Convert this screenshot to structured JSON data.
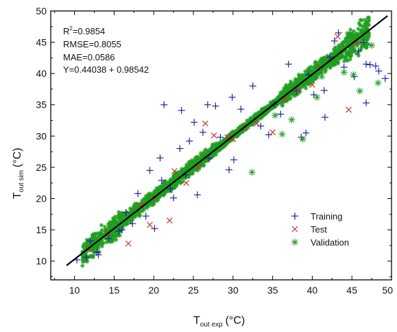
{
  "chart_data": {
    "type": "scatter",
    "title": "",
    "xlabel": {
      "main": "T",
      "sub": "out exp",
      "unit": "(°C)"
    },
    "ylabel": {
      "main": "T",
      "sub": "out sim",
      "unit": "(°C)"
    },
    "xlim": [
      7,
      50
    ],
    "ylim": [
      7,
      50
    ],
    "xticks": [
      10,
      15,
      20,
      25,
      30,
      35,
      40,
      45,
      50
    ],
    "yticks": [
      10,
      15,
      20,
      25,
      30,
      35,
      40,
      45,
      50
    ],
    "grid": false,
    "legend_position": "bottom-right",
    "stats": {
      "r2_label": "R",
      "r2_sup": "2",
      "r2_value": "=0.9854",
      "rmse": "RMSE=0.8055",
      "mae": "MAE=0.0586",
      "equation": "Y=0.44038 + 0.98542"
    },
    "fit_line": {
      "intercept": 0.44038,
      "slope": 0.98542,
      "x_range": [
        9,
        49.5
      ]
    },
    "series": [
      {
        "name": "Training",
        "marker": "plus",
        "color": "#2020a0",
        "points": [
          [
            43.3,
            46.5
          ],
          [
            42.8,
            45.2
          ],
          [
            46.8,
            41.5
          ],
          [
            47.3,
            41.4
          ],
          [
            48.0,
            41.2
          ],
          [
            48.4,
            40.4
          ],
          [
            49.2,
            39.2
          ],
          [
            45.3,
            39.5
          ],
          [
            46.8,
            35.3
          ],
          [
            41.6,
            33.0
          ],
          [
            39.2,
            30.5
          ],
          [
            38.6,
            29.8
          ],
          [
            21.3,
            35.0
          ],
          [
            23.5,
            34.1
          ],
          [
            26.8,
            35.0
          ],
          [
            29.9,
            36.2
          ],
          [
            32.5,
            38.0
          ],
          [
            37.0,
            41.5
          ],
          [
            19.5,
            24.5
          ],
          [
            20.8,
            26.5
          ],
          [
            16.5,
            17.8
          ],
          [
            20.1,
            15.2
          ],
          [
            12.0,
            13.2
          ],
          [
            14.3,
            13.6
          ],
          [
            13.0,
            11.0
          ],
          [
            22.1,
            21.6
          ],
          [
            25.5,
            20.6
          ],
          [
            29.5,
            24.6
          ],
          [
            30.1,
            26.2
          ],
          [
            34.5,
            30.2
          ],
          [
            26.2,
            30.6
          ],
          [
            24.5,
            29.2
          ],
          [
            23.3,
            28.0
          ],
          [
            25.1,
            32.2
          ],
          [
            27.8,
            34.8
          ],
          [
            31.0,
            34.3
          ],
          [
            36.0,
            33.5
          ],
          [
            40.2,
            36.6
          ],
          [
            41.5,
            37.3
          ],
          [
            44.0,
            41.0
          ],
          [
            45.8,
            43.6
          ],
          [
            46.5,
            45.0
          ],
          [
            38.0,
            37.2
          ],
          [
            33.5,
            31.6
          ],
          [
            17.3,
            16.0
          ],
          [
            15.6,
            14.8
          ],
          [
            18.0,
            20.8
          ],
          [
            21.0,
            22.9
          ],
          [
            10.3,
            10.2
          ],
          [
            11.5,
            10.6
          ],
          [
            19.0,
            17.2
          ],
          [
            22.5,
            20.1
          ],
          [
            24.0,
            23.8
          ],
          [
            27.0,
            26.4
          ],
          [
            28.4,
            29.8
          ],
          [
            35.2,
            35.1
          ],
          [
            39.5,
            39.8
          ],
          [
            42.2,
            42.6
          ],
          [
            12.8,
            11.4
          ],
          [
            16.0,
            15.0
          ]
        ]
      },
      {
        "name": "Test",
        "marker": "cross",
        "color": "#cc3030",
        "points": [
          [
            44.6,
            34.2
          ],
          [
            43.2,
            45.9
          ],
          [
            22.0,
            16.5
          ],
          [
            19.5,
            15.8
          ],
          [
            16.8,
            12.8
          ],
          [
            20.2,
            20.2
          ],
          [
            22.6,
            24.4
          ],
          [
            27.6,
            30.1
          ],
          [
            30.0,
            29.5
          ],
          [
            33.0,
            32.0
          ],
          [
            35.0,
            30.6
          ],
          [
            38.2,
            37.4
          ],
          [
            41.0,
            40.9
          ],
          [
            36.5,
            35.9
          ],
          [
            29.3,
            29.8
          ],
          [
            25.6,
            25.0
          ],
          [
            18.4,
            18.9
          ],
          [
            14.2,
            14.5
          ],
          [
            11.8,
            12.0
          ],
          [
            31.5,
            31.4
          ],
          [
            26.5,
            32.0
          ],
          [
            24.1,
            22.5
          ],
          [
            40.0,
            38.2
          ],
          [
            45.5,
            44.8
          ]
        ]
      },
      {
        "name": "Validation",
        "marker": "asterisk",
        "color": "#30a030",
        "points": [
          [
            46.0,
            37.2
          ],
          [
            48.3,
            38.5
          ],
          [
            32.4,
            24.2
          ],
          [
            36.2,
            30.3
          ],
          [
            38.8,
            29.5
          ],
          [
            37.4,
            32.6
          ],
          [
            45.2,
            39.8
          ],
          [
            44.0,
            40.2
          ],
          [
            47.5,
            44.5
          ],
          [
            41.2,
            39.5
          ],
          [
            40.6,
            36.2
          ],
          [
            35.3,
            33.3
          ]
        ]
      }
    ],
    "band": {
      "color": "#1f9e1f",
      "offsets": [
        [
          -2.2,
          2.2
        ],
        [
          -1.2,
          1.4
        ],
        [
          -0.7,
          0.8
        ],
        [
          -1.6,
          1.7
        ],
        [
          -2.8,
          2.9
        ]
      ],
      "ranges": [
        [
          11,
          16
        ],
        [
          16,
          28
        ],
        [
          28,
          36
        ],
        [
          36,
          44
        ],
        [
          44,
          47.2
        ]
      ]
    }
  }
}
